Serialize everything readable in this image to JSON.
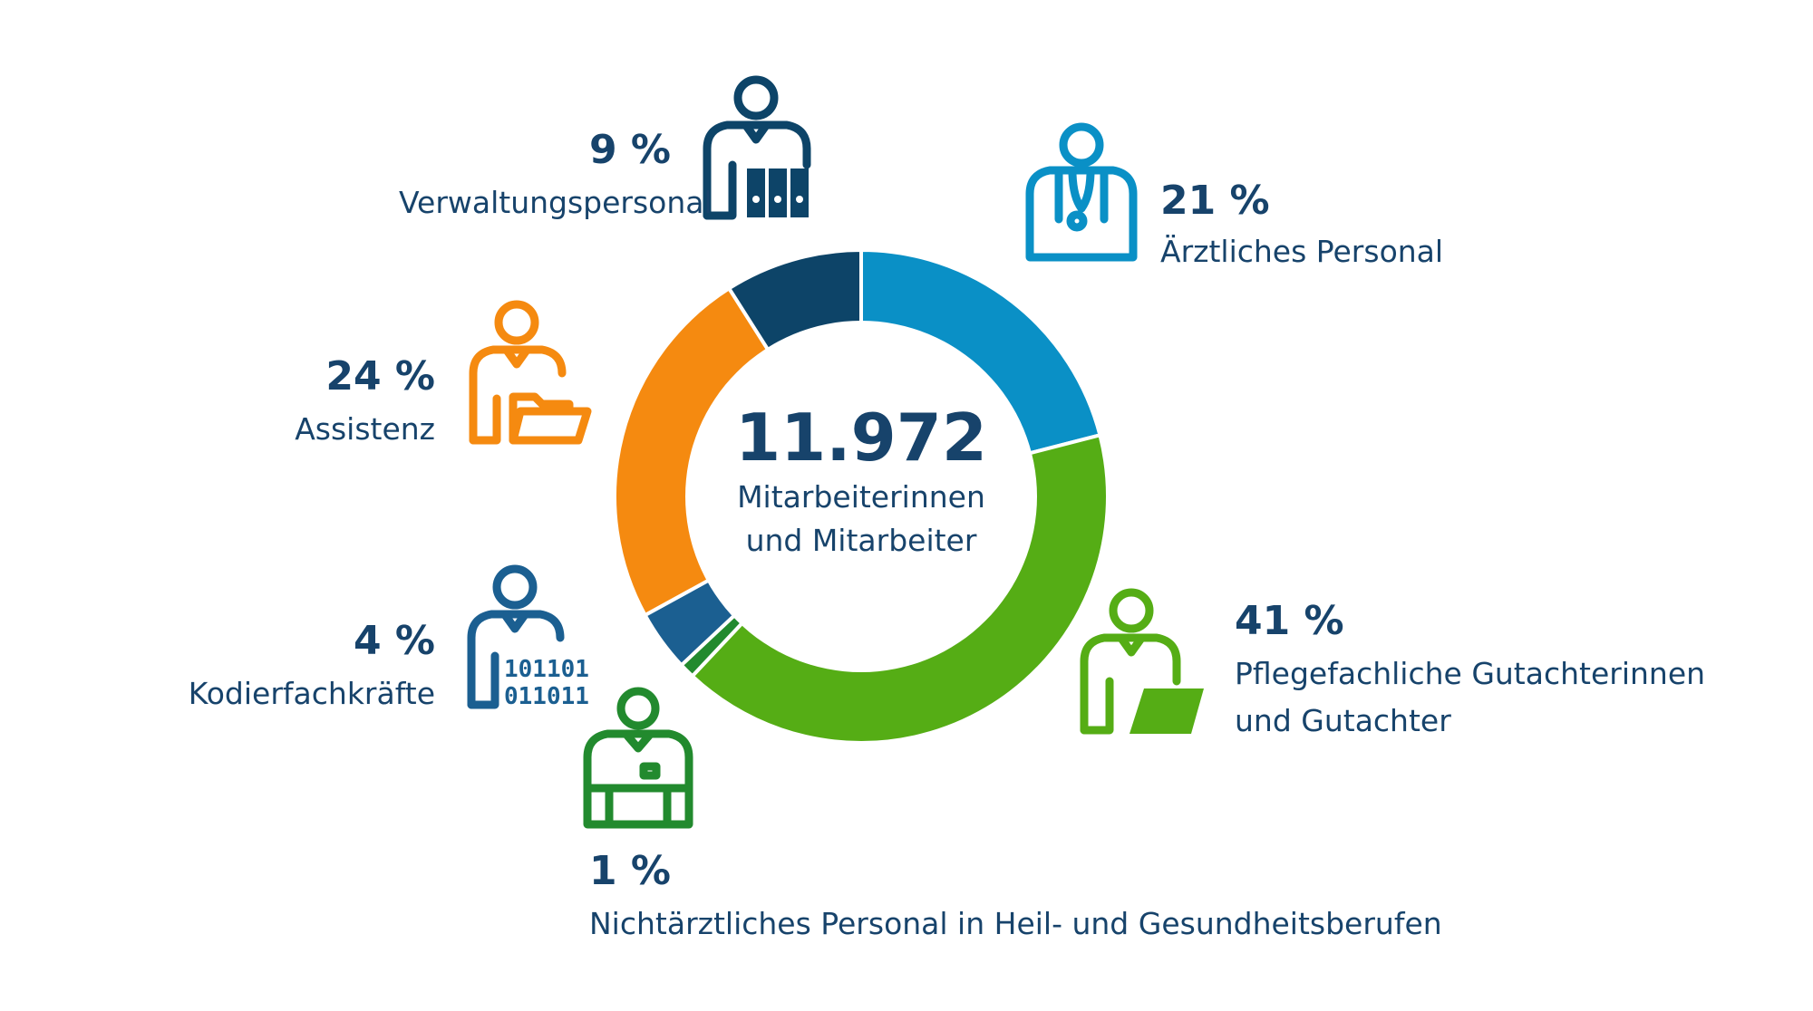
{
  "center": {
    "total": "11.972",
    "line1": "Mitarbeiterinnen",
    "line2": "und Mitarbeiter"
  },
  "segments": [
    {
      "percent_label": "21 %",
      "label": "Ärztliches Personal",
      "color": "#0a90c6",
      "icon": "doctor-stethoscope-icon"
    },
    {
      "percent_label": "41 %",
      "label": "Pflegefachliche Gutachterinnen und Gutachter",
      "label_line1": "Pflegefachliche Gutachterinnen",
      "label_line2": "und Gutachter",
      "color": "#55ad15",
      "icon": "person-laptop-icon"
    },
    {
      "percent_label": "1 %",
      "label": "Nichtärztliches Personal in Heil- und Gesundheitsberufen",
      "color": "#228a2e",
      "icon": "person-medical-uniform-icon"
    },
    {
      "percent_label": "4 %",
      "label": "Kodierfachkräfte",
      "color": "#1b5f91",
      "icon": "person-binary-code-icon",
      "icon_text1": "101101",
      "icon_text2": "011011"
    },
    {
      "percent_label": "24 %",
      "label": "Assistenz",
      "color": "#f58a10",
      "icon": "person-folder-icon"
    },
    {
      "percent_label": "9 %",
      "label": "Verwaltungspersonal",
      "color": "#0d4468",
      "icon": "person-binders-icon"
    }
  ],
  "chart_data": {
    "type": "pie",
    "donut": true,
    "total": 11972,
    "categories": [
      "Ärztliches Personal",
      "Pflegefachliche Gutachterinnen und Gutachter",
      "Nichtärztliches Personal in Heil- und Gesundheitsberufen",
      "Kodierfachkräfte",
      "Assistenz",
      "Verwaltungspersonal"
    ],
    "values": [
      21,
      41,
      1,
      4,
      24,
      9
    ],
    "unit": "%",
    "colors": [
      "#0a90c6",
      "#55ad15",
      "#228a2e",
      "#1b5f91",
      "#f58a10",
      "#0d4468"
    ]
  }
}
